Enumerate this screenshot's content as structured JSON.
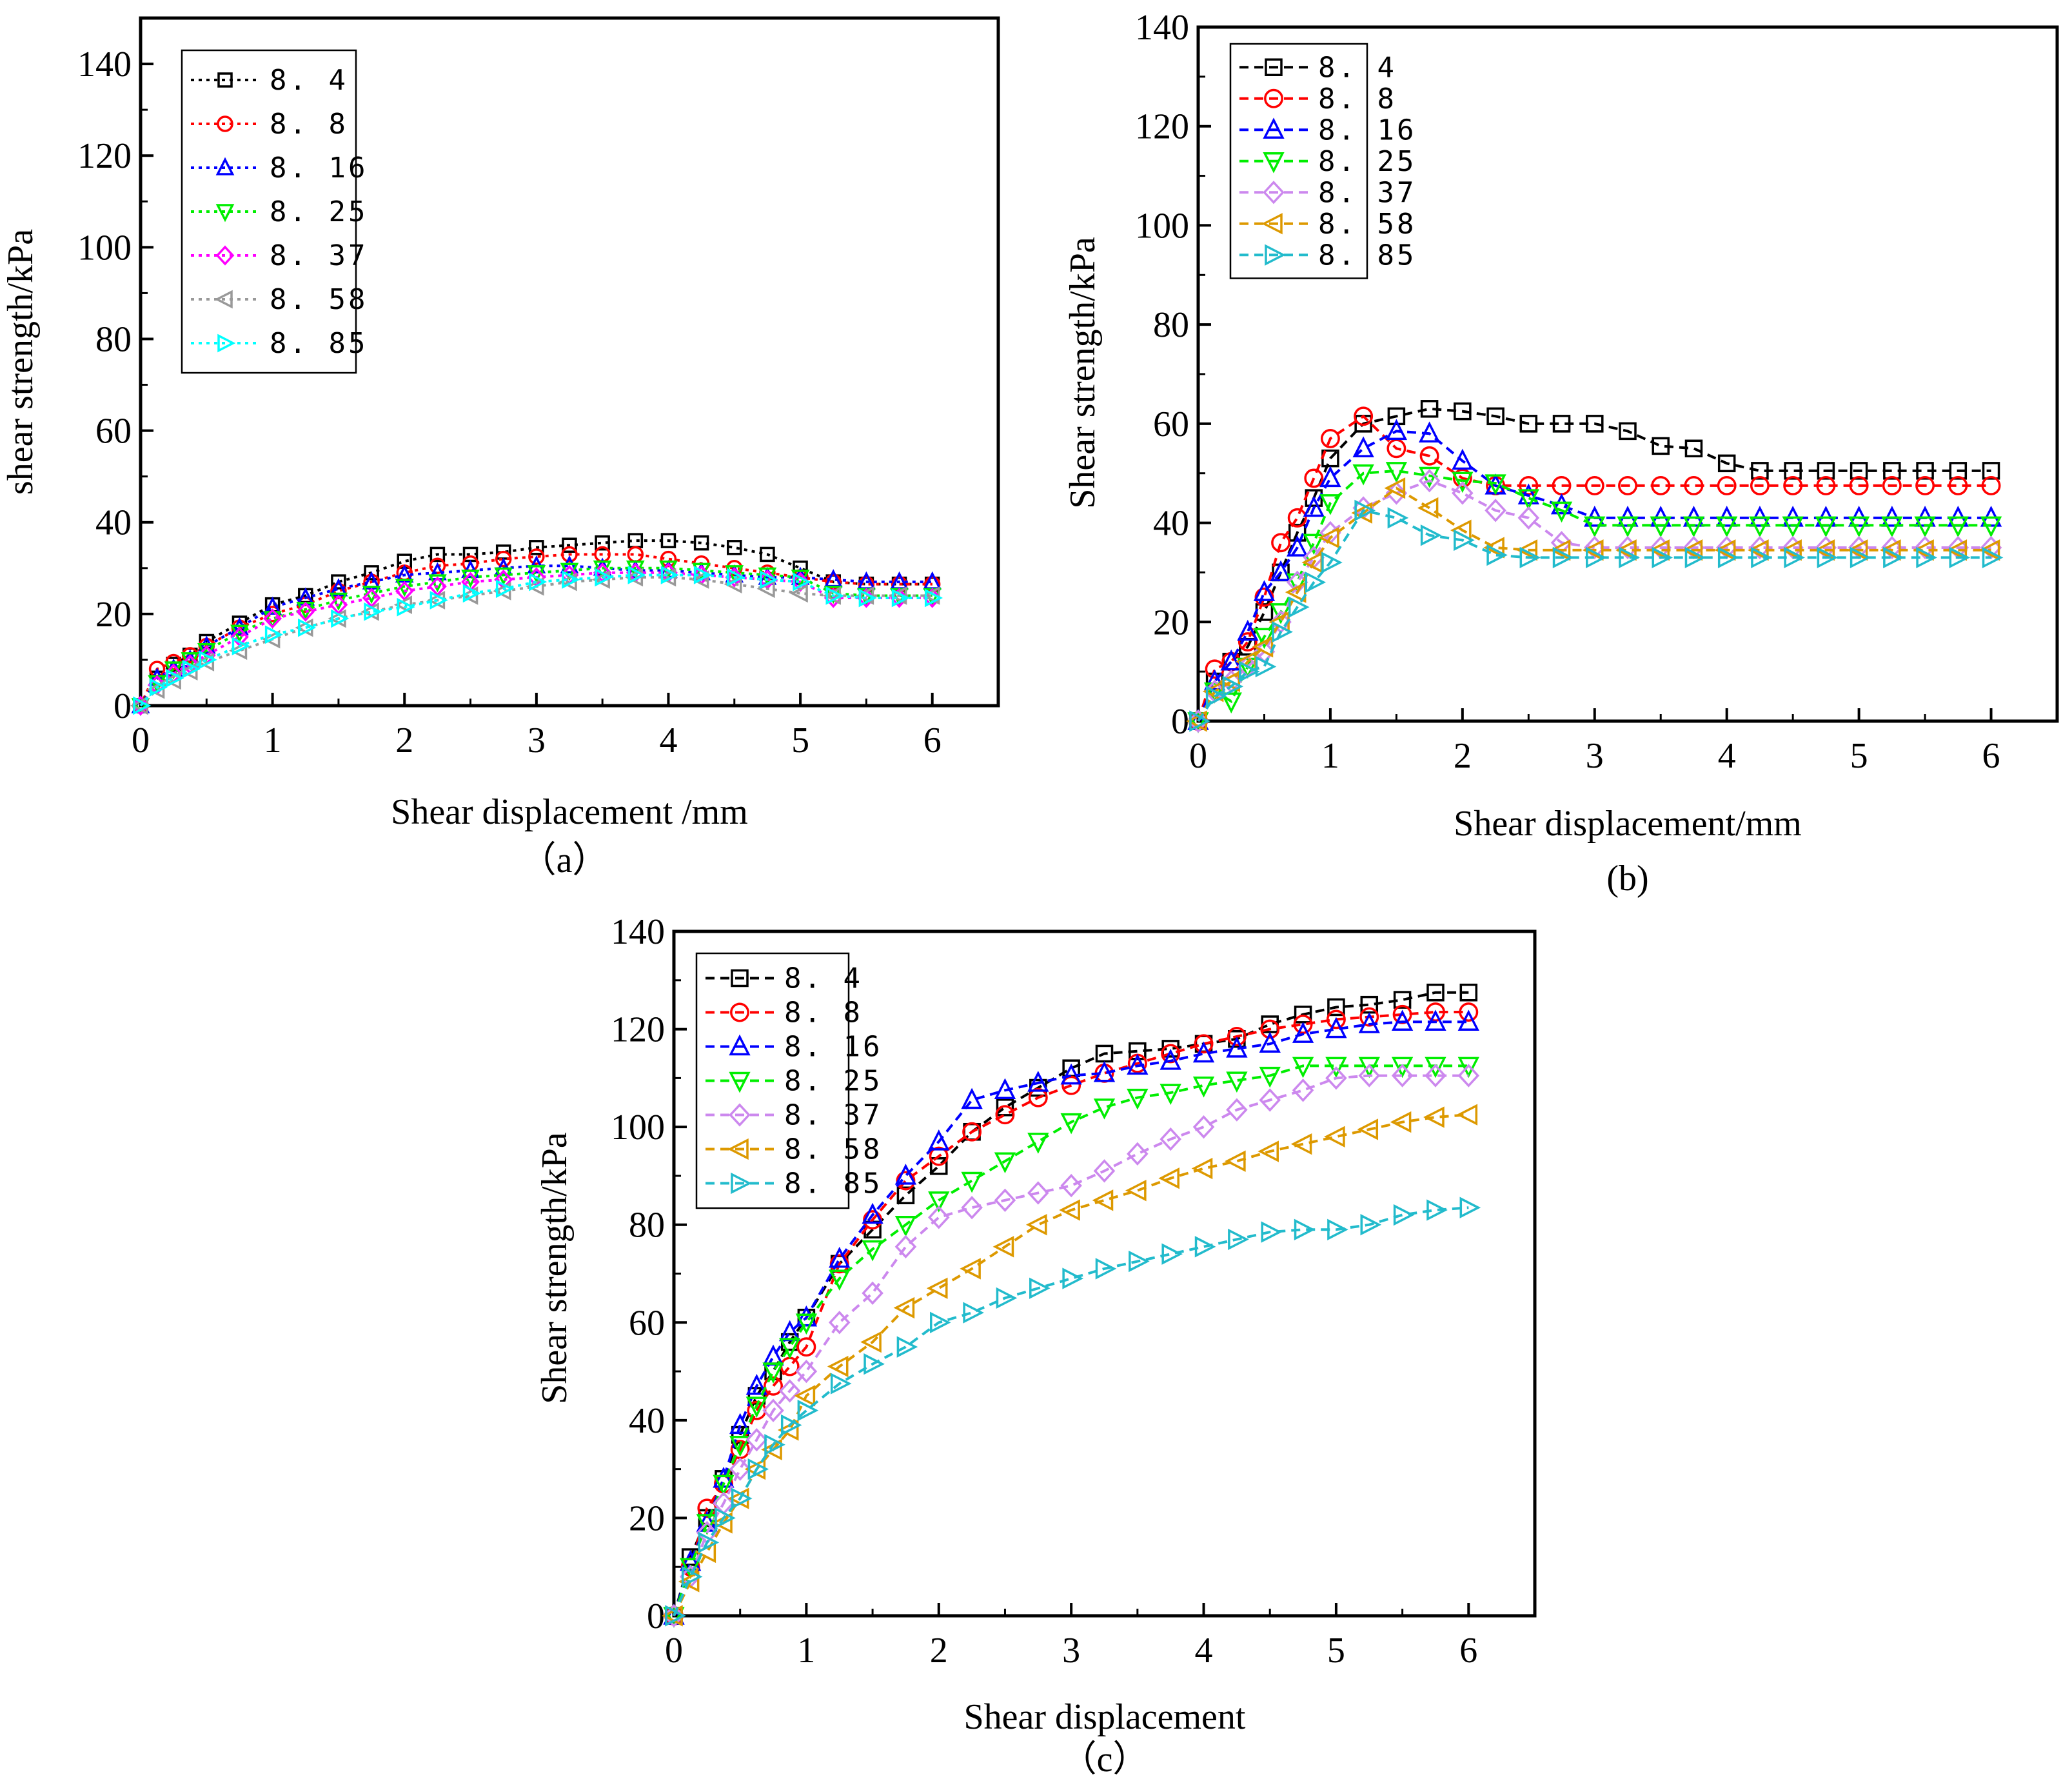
{
  "chart_data": [
    {
      "id": "a",
      "type": "line",
      "panel_label": "（a）",
      "xlabel": "Shear displacement /mm",
      "ylabel": "shear strength/kPa",
      "xlim": [
        0,
        6.5
      ],
      "ylim": [
        0,
        150
      ],
      "xticks": [
        "0",
        "1",
        "2",
        "3",
        "4",
        "5",
        "6"
      ],
      "yticks": [
        "0",
        "20",
        "40",
        "60",
        "80",
        "100",
        "120",
        "140"
      ],
      "legend_position": "top-left",
      "line_style": "dotted",
      "x": [
        0,
        0.125,
        0.25,
        0.375,
        0.5,
        0.75,
        1.0,
        1.25,
        1.5,
        1.75,
        2.0,
        2.25,
        2.5,
        2.75,
        3.0,
        3.25,
        3.5,
        3.75,
        4.0,
        4.25,
        4.5,
        4.75,
        5.0,
        5.25,
        5.5,
        5.75,
        6.0
      ],
      "series": [
        {
          "name": "8.4",
          "color": "#000000",
          "marker": "square",
          "values": [
            0,
            6,
            9,
            11,
            14,
            18,
            22,
            24,
            27,
            29,
            31.5,
            33,
            33,
            33.5,
            34.5,
            35,
            35.5,
            36,
            36,
            35.5,
            34.5,
            33,
            30,
            27,
            26.5,
            26.5,
            26.5
          ]
        },
        {
          "name": "8.8",
          "color": "#ff0000",
          "marker": "circle",
          "values": [
            0,
            8,
            9.5,
            11,
            13,
            17,
            20,
            22,
            25,
            27,
            29,
            30.5,
            31,
            32,
            32.5,
            33,
            33,
            33,
            32,
            31,
            30,
            29,
            28,
            27,
            26.5,
            26.5,
            26.5
          ]
        },
        {
          "name": "8.16",
          "color": "#0000ff",
          "marker": "triangle-up",
          "values": [
            0,
            6,
            8,
            10,
            13,
            17,
            21.5,
            23.5,
            25.5,
            27,
            28.5,
            29,
            29.5,
            30,
            30.5,
            30.5,
            30,
            29.5,
            29.5,
            29,
            28.5,
            28,
            28,
            27.5,
            27,
            27,
            27
          ]
        },
        {
          "name": "8.25",
          "color": "#00ee00",
          "marker": "triangle-down",
          "values": [
            0,
            5,
            8,
            10,
            12,
            16,
            19,
            21,
            23,
            24.5,
            26,
            27,
            28,
            28.5,
            29,
            29.5,
            30,
            30,
            30,
            29.5,
            29,
            28.5,
            28,
            24.5,
            24,
            24,
            24
          ]
        },
        {
          "name": "8.37",
          "color": "#ff00ff",
          "marker": "diamond",
          "values": [
            0,
            4.5,
            7,
            9,
            11,
            15,
            19,
            20.5,
            22,
            23.5,
            25,
            26,
            27,
            27.5,
            28,
            28.5,
            29,
            29,
            29,
            28.5,
            28,
            27.5,
            27,
            23.5,
            23.5,
            23.5,
            23.5
          ]
        },
        {
          "name": "8.58",
          "color": "#999999",
          "marker": "triangle-left",
          "values": [
            0,
            3.5,
            5.5,
            7.5,
            9.5,
            12,
            14.5,
            17,
            19,
            20.5,
            22,
            23,
            24,
            25,
            26,
            27,
            27.5,
            28,
            28,
            27.5,
            26.5,
            25.5,
            24.5,
            24,
            24,
            24,
            24
          ]
        },
        {
          "name": "8.85",
          "color": "#00ffff",
          "marker": "triangle-right",
          "values": [
            0,
            4,
            6,
            8,
            10,
            13,
            15.5,
            17,
            19,
            20.5,
            21.5,
            23,
            24.5,
            25.5,
            27,
            27.5,
            28,
            28.5,
            28.5,
            28.5,
            28,
            27.5,
            27,
            24,
            23.5,
            23.5,
            23.5
          ]
        }
      ]
    },
    {
      "id": "b",
      "type": "line",
      "panel_label": "(b)",
      "xlabel": "Shear displacement/mm",
      "ylabel": "Shear strength/kPa",
      "xlim": [
        0,
        6.5
      ],
      "ylim": [
        0,
        140
      ],
      "xticks": [
        "0",
        "1",
        "2",
        "3",
        "4",
        "5",
        "6"
      ],
      "yticks": [
        "0",
        "20",
        "40",
        "60",
        "80",
        "100",
        "120",
        "140"
      ],
      "legend_position": "top-left",
      "line_style": "dashed",
      "x": [
        0,
        0.125,
        0.25,
        0.375,
        0.5,
        0.625,
        0.75,
        0.875,
        1.0,
        1.25,
        1.5,
        1.75,
        2.0,
        2.25,
        2.5,
        2.75,
        3.0,
        3.25,
        3.5,
        3.75,
        4.0,
        4.25,
        4.5,
        4.75,
        5.0,
        5.25,
        5.5,
        5.75,
        6.0
      ],
      "series": [
        {
          "name": "8.4",
          "color": "#000000",
          "marker": "square",
          "values": [
            0,
            8,
            12,
            15,
            22,
            30,
            38,
            45,
            53,
            60,
            61.5,
            63,
            62.5,
            61.5,
            60,
            60,
            60,
            58.5,
            55.5,
            55,
            52,
            50.5,
            50.5,
            50.5,
            50.5,
            50.5,
            50.5,
            50.5,
            50.5
          ]
        },
        {
          "name": "8.8",
          "color": "#ff0000",
          "marker": "circle",
          "values": [
            0,
            10.5,
            12,
            16,
            25,
            36,
            41,
            49,
            57,
            61.5,
            55,
            53.5,
            49,
            47.5,
            47.5,
            47.5,
            47.5,
            47.5,
            47.5,
            47.5,
            47.5,
            47.5,
            47.5,
            47.5,
            47.5,
            47.5,
            47.5,
            47.5,
            47.5
          ]
        },
        {
          "name": "8.16",
          "color": "#0000ff",
          "marker": "triangle-up",
          "values": [
            0,
            8,
            12,
            18,
            26,
            30,
            35,
            43,
            49,
            55,
            58.5,
            58,
            52.5,
            47.5,
            45.5,
            43.5,
            41,
            41,
            41,
            41,
            41,
            41,
            41,
            41,
            41,
            41,
            41,
            41,
            41
          ]
        },
        {
          "name": "8.25",
          "color": "#00ee00",
          "marker": "triangle-down",
          "values": [
            0,
            6,
            4,
            11,
            17,
            22,
            28,
            36,
            44,
            50,
            50.5,
            49.5,
            48.5,
            48,
            45,
            42.5,
            39.5,
            39.5,
            39.5,
            39.5,
            39.5,
            39.5,
            39.5,
            39.5,
            39.5,
            39.5,
            39.5,
            39.5,
            39.5
          ]
        },
        {
          "name": "8.37",
          "color": "#cc88ee",
          "marker": "diamond",
          "values": [
            0,
            6,
            8,
            11,
            14,
            20,
            28,
            33,
            38,
            43,
            46,
            48.5,
            46,
            42.5,
            41,
            36,
            35,
            35,
            35,
            35,
            35,
            35,
            35,
            35,
            35,
            35,
            35,
            35,
            35
          ]
        },
        {
          "name": "8.58",
          "color": "#dd9900",
          "marker": "triangle-left",
          "values": [
            0,
            6,
            8,
            12,
            15,
            20,
            26,
            32,
            37,
            42,
            47,
            43,
            38.5,
            35,
            34.5,
            34.5,
            34.5,
            34.5,
            34.5,
            34.5,
            34.5,
            34.5,
            34.5,
            34.5,
            34.5,
            34.5,
            34.5,
            34.5,
            34.5
          ]
        },
        {
          "name": "8.85",
          "color": "#22bbcc",
          "marker": "triangle-right",
          "values": [
            0,
            5,
            7,
            10,
            11,
            18,
            23,
            28,
            32,
            42.5,
            41,
            37.5,
            36.5,
            33.5,
            33,
            33,
            33,
            33,
            33,
            33,
            33,
            33,
            33,
            33,
            33,
            33,
            33,
            33,
            33
          ]
        }
      ]
    },
    {
      "id": "c",
      "type": "line",
      "panel_label": "（c）",
      "xlabel": "Shear displacement",
      "ylabel": "Shear strength/kPa",
      "xlim": [
        0,
        6.5
      ],
      "ylim": [
        0,
        140
      ],
      "xticks": [
        "0",
        "1",
        "2",
        "3",
        "4",
        "5",
        "6"
      ],
      "yticks": [
        "0",
        "20",
        "40",
        "60",
        "80",
        "100",
        "120",
        "140"
      ],
      "legend_position": "top-left",
      "line_style": "dashed",
      "x": [
        0,
        0.125,
        0.25,
        0.375,
        0.5,
        0.625,
        0.75,
        0.875,
        1.0,
        1.25,
        1.5,
        1.75,
        2.0,
        2.25,
        2.5,
        2.75,
        3.0,
        3.25,
        3.5,
        3.75,
        4.0,
        4.25,
        4.5,
        4.75,
        5.0,
        5.25,
        5.5,
        5.75,
        6.0
      ],
      "series": [
        {
          "name": "8.4",
          "color": "#000000",
          "marker": "square",
          "values": [
            0,
            12,
            20,
            28,
            37,
            45,
            50,
            56,
            61,
            72,
            79,
            86,
            92,
            99,
            104,
            108,
            112,
            115,
            115.5,
            116,
            117,
            118,
            121,
            123,
            124.5,
            125,
            126,
            127.5,
            127.5
          ]
        },
        {
          "name": "8.8",
          "color": "#ff0000",
          "marker": "circle",
          "values": [
            0,
            10,
            22,
            27,
            34,
            42,
            47,
            51,
            55,
            72,
            81,
            89,
            94,
            99,
            102.5,
            106,
            108.5,
            111,
            113,
            115,
            117,
            118.5,
            120,
            121,
            122,
            122.5,
            123,
            123.5,
            123.5
          ]
        },
        {
          "name": "8.16",
          "color": "#0000ff",
          "marker": "triangle-up",
          "values": [
            0,
            11,
            19,
            28,
            39,
            47,
            53,
            58,
            61,
            73,
            82,
            90,
            97,
            105.5,
            107.5,
            109,
            110.5,
            111,
            112.5,
            113.5,
            115,
            116,
            117,
            119,
            120,
            121,
            121.5,
            121.5,
            121.5
          ]
        },
        {
          "name": "8.25",
          "color": "#00ee00",
          "marker": "triangle-down",
          "values": [
            0,
            10,
            19,
            27,
            35,
            43,
            50,
            55,
            60,
            69,
            75,
            80,
            85,
            89,
            93,
            97,
            101,
            104,
            106,
            107,
            108.5,
            109.5,
            110.5,
            112.5,
            112.5,
            112.5,
            112.5,
            112.5,
            112.5
          ]
        },
        {
          "name": "8.37",
          "color": "#cc88ee",
          "marker": "diamond",
          "values": [
            0,
            8,
            17,
            23,
            30,
            36,
            42,
            46,
            50,
            60,
            66,
            75.5,
            81.5,
            83.5,
            85,
            86.5,
            88,
            91,
            94.5,
            97.5,
            100,
            103.5,
            105.5,
            107.5,
            110,
            110.5,
            110.5,
            110.5,
            110.5
          ]
        },
        {
          "name": "8.58",
          "color": "#dd9900",
          "marker": "triangle-left",
          "values": [
            0,
            7,
            13,
            19,
            24,
            30,
            34,
            38,
            45,
            51,
            56,
            63,
            67,
            71,
            75.5,
            80,
            83,
            85,
            87,
            89.5,
            91.5,
            93,
            95,
            96.5,
            98,
            99.5,
            101,
            102,
            102.5
          ]
        },
        {
          "name": "8.85",
          "color": "#22bbcc",
          "marker": "triangle-right",
          "values": [
            0,
            8,
            15,
            20,
            24,
            30,
            35,
            39,
            42,
            47.5,
            51.5,
            55,
            60,
            62,
            65,
            67,
            69,
            71,
            72.5,
            74,
            75.5,
            77,
            78.5,
            79,
            79,
            80,
            82,
            83,
            83.5
          ]
        }
      ]
    }
  ]
}
